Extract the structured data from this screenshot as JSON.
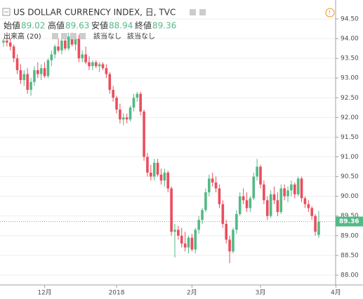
{
  "header": {
    "title": "US DOLLAR CURRENCY INDEX, 日, TVC",
    "labels": [
      "始値",
      "高値",
      "安値",
      "終値"
    ],
    "indicator": "出来高 (20)",
    "na": [
      "該当なし",
      "該当なし"
    ]
  },
  "chart_data": {
    "type": "candlestick",
    "categories": [
      null,
      null,
      null,
      null,
      null,
      null,
      null,
      null,
      null,
      null,
      null,
      null,
      "12月",
      null,
      null,
      null,
      null,
      null,
      null,
      null,
      null,
      null,
      null,
      null,
      null,
      null,
      null,
      null,
      null,
      null,
      null,
      null,
      null,
      "2018",
      null,
      null,
      null,
      null,
      null,
      null,
      null,
      null,
      null,
      null,
      null,
      null,
      null,
      null,
      null,
      null,
      null,
      null,
      null,
      null,
      null,
      "2月",
      null,
      null,
      null,
      null,
      null,
      null,
      null,
      null,
      null,
      null,
      null,
      null,
      null,
      null,
      null,
      null,
      null,
      null,
      null,
      "3月",
      null,
      null,
      null,
      null,
      null,
      null,
      null,
      null,
      null,
      null,
      null,
      null,
      null,
      null,
      null,
      null,
      null,
      null,
      null,
      null,
      null,
      "4月"
    ],
    "open": [
      93.9,
      93.95,
      93.9,
      93.8,
      93.5,
      93.2,
      92.95,
      93.1,
      92.7,
      92.9,
      93.2,
      93.1,
      93.25,
      93.05,
      93.45,
      93.6,
      93.8,
      93.7,
      93.95,
      93.75,
      94.05,
      93.85,
      94.0,
      93.5,
      93.6,
      93.4,
      93.3,
      93.4,
      93.3,
      93.35,
      93.25,
      93.1,
      92.7,
      92.5,
      92.2,
      91.95,
      92.0,
      91.95,
      92.25,
      92.5,
      92.6,
      92.15,
      91.0,
      90.6,
      90.5,
      90.85,
      90.55,
      90.4,
      90.6,
      90.2,
      89.1,
      89.15,
      89.0,
      88.8,
      88.7,
      88.95,
      88.65,
      89.15,
      89.4,
      89.65,
      90.1,
      90.45,
      90.35,
      90.2,
      89.8,
      89.3,
      88.9,
      88.6,
      89.15,
      89.55,
      90.0,
      89.9,
      89.7,
      89.95,
      90.5,
      90.75,
      90.3,
      89.9,
      89.5,
      90.05,
      89.9,
      89.6,
      90.2,
      90.0,
      90.15,
      90.3,
      90.05,
      90.45,
      89.95,
      89.8,
      89.7,
      89.5,
      89.02,
      null,
      null,
      null,
      null,
      null
    ],
    "high": [
      94.0,
      94.05,
      94.0,
      93.85,
      93.6,
      93.35,
      93.2,
      93.25,
      93.0,
      93.3,
      93.4,
      93.35,
      93.4,
      93.5,
      93.7,
      93.85,
      94.0,
      94.0,
      94.1,
      94.15,
      94.15,
      94.05,
      94.1,
      93.7,
      93.8,
      93.55,
      93.45,
      93.45,
      93.4,
      93.4,
      93.35,
      93.15,
      92.8,
      92.55,
      92.35,
      92.1,
      92.1,
      92.3,
      92.6,
      92.65,
      92.65,
      92.2,
      91.1,
      90.8,
      90.95,
      90.95,
      90.7,
      90.7,
      90.65,
      90.25,
      89.3,
      89.25,
      89.2,
      89.1,
      89.0,
      89.05,
      89.2,
      89.5,
      89.7,
      90.2,
      90.55,
      90.6,
      90.5,
      90.3,
      89.9,
      89.4,
      89.0,
      89.2,
      89.65,
      90.1,
      90.2,
      90.1,
      90.0,
      90.6,
      90.95,
      90.8,
      90.4,
      90.0,
      90.15,
      90.25,
      90.1,
      90.3,
      90.3,
      90.25,
      90.4,
      90.35,
      90.5,
      90.5,
      90.0,
      89.9,
      89.75,
      89.55,
      89.63,
      null,
      null,
      null,
      null,
      null
    ],
    "low": [
      93.8,
      93.8,
      93.7,
      93.4,
      93.1,
      92.85,
      92.8,
      92.6,
      92.55,
      92.8,
      93.0,
      92.95,
      93.0,
      93.0,
      93.3,
      93.5,
      93.65,
      93.6,
      93.7,
      93.7,
      93.8,
      93.7,
      93.4,
      93.4,
      93.35,
      93.2,
      93.2,
      93.25,
      93.15,
      93.2,
      93.0,
      92.6,
      92.4,
      92.1,
      91.85,
      91.8,
      91.85,
      91.9,
      92.15,
      92.4,
      92.05,
      90.9,
      90.5,
      90.4,
      90.4,
      90.5,
      90.3,
      90.25,
      90.1,
      89.0,
      88.45,
      88.9,
      88.7,
      88.6,
      88.55,
      88.6,
      88.55,
      89.05,
      89.3,
      89.6,
      90.0,
      90.25,
      90.1,
      89.7,
      89.2,
      88.8,
      88.3,
      88.55,
      89.05,
      89.5,
      89.8,
      89.6,
      89.6,
      89.9,
      90.4,
      90.2,
      89.8,
      89.4,
      89.45,
      89.8,
      89.5,
      89.55,
      89.9,
      89.85,
      90.0,
      89.95,
      90.0,
      89.85,
      89.7,
      89.6,
      89.4,
      89.0,
      88.94,
      null,
      null,
      null,
      null,
      null
    ],
    "close": [
      93.95,
      93.9,
      93.8,
      93.5,
      93.2,
      92.95,
      93.1,
      92.7,
      92.9,
      93.2,
      93.1,
      93.25,
      93.05,
      93.45,
      93.6,
      93.8,
      93.7,
      93.95,
      93.75,
      94.05,
      93.85,
      94.0,
      93.5,
      93.6,
      93.4,
      93.3,
      93.4,
      93.3,
      93.35,
      93.25,
      93.1,
      92.7,
      92.5,
      92.2,
      91.95,
      92.0,
      91.95,
      92.25,
      92.5,
      92.6,
      92.15,
      91.0,
      90.6,
      90.5,
      90.85,
      90.55,
      90.4,
      90.6,
      90.2,
      89.1,
      89.15,
      89.0,
      88.8,
      88.7,
      88.95,
      88.65,
      89.15,
      89.4,
      89.65,
      90.1,
      90.45,
      90.35,
      90.2,
      89.8,
      89.3,
      88.9,
      88.6,
      89.15,
      89.55,
      90.0,
      89.9,
      89.7,
      89.95,
      90.5,
      90.75,
      90.3,
      89.9,
      89.5,
      90.05,
      89.9,
      89.6,
      90.2,
      90.0,
      90.15,
      90.3,
      90.05,
      90.45,
      89.95,
      89.8,
      89.7,
      89.5,
      89.1,
      89.36,
      null,
      null,
      null,
      null,
      null
    ],
    "up_color": "#53b987",
    "down_color": "#eb4d5c",
    "ylim": [
      87.75,
      94.98
    ],
    "yticks": [
      {
        "value": 88,
        "label": "88.00"
      },
      {
        "value": 88.5,
        "label": "88.50"
      },
      {
        "value": 89,
        "label": "89.00"
      },
      {
        "value": 89.5,
        "label": "89.50"
      },
      {
        "value": 90,
        "label": "90.00"
      },
      {
        "value": 90.5,
        "label": "90.50"
      },
      {
        "value": 91,
        "label": "91.00"
      },
      {
        "value": 91.5,
        "label": "91.50"
      },
      {
        "value": 92,
        "label": "92.00"
      },
      {
        "value": 92.5,
        "label": "92.50"
      },
      {
        "value": 93,
        "label": "93.00"
      },
      {
        "value": 93.5,
        "label": "93.50"
      },
      {
        "value": 94,
        "label": "94.00"
      },
      {
        "value": 94.5,
        "label": "94.50"
      }
    ],
    "grid": true
  }
}
